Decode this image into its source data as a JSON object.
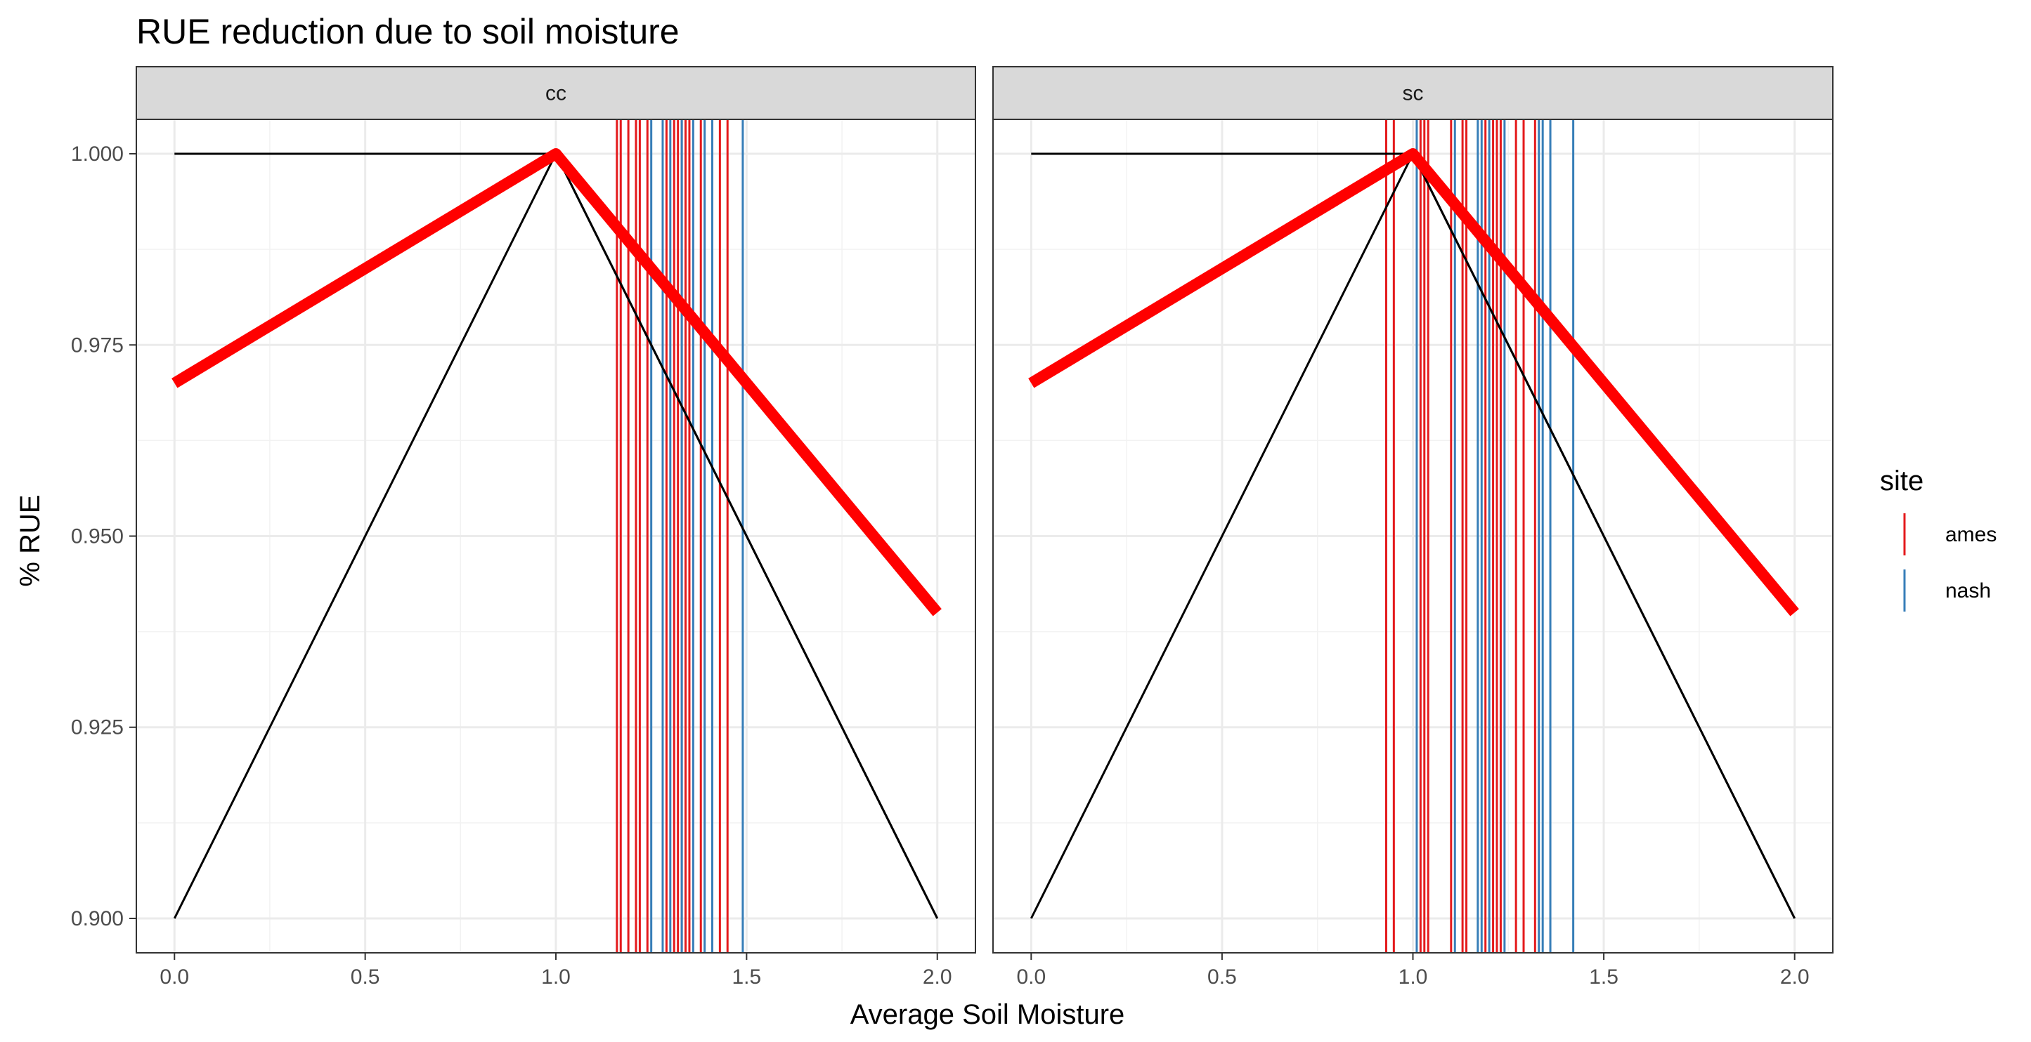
{
  "chart_data": {
    "type": "line",
    "title": "RUE reduction due to soil moisture",
    "xlabel": "Average Soil Moisture",
    "ylabel": "% RUE",
    "xlim": [
      -0.1,
      2.1
    ],
    "ylim": [
      0.8955,
      1.0045
    ],
    "x_ticks": [
      0.0,
      0.5,
      1.0,
      1.5,
      2.0
    ],
    "x_tick_labels": [
      "0.0",
      "0.5",
      "1.0",
      "1.5",
      "2.0"
    ],
    "y_ticks": [
      0.9,
      0.925,
      0.95,
      0.975,
      1.0
    ],
    "y_tick_labels": [
      "0.900",
      "0.925",
      "0.950",
      "0.975",
      "1.000"
    ],
    "grid": true,
    "legend": {
      "title": "site",
      "position": "right",
      "entries": [
        {
          "label": "ames",
          "color": "#e41a1c"
        },
        {
          "label": "nash",
          "color": "#377eb8"
        }
      ]
    },
    "panels": [
      {
        "name": "cc",
        "lines": [
          {
            "x": [
              0,
              1,
              2
            ],
            "y": [
              1.0,
              1.0,
              0.9
            ],
            "color": "#000000",
            "width": "thin"
          },
          {
            "x": [
              0,
              1,
              2
            ],
            "y": [
              0.9,
              1.0,
              0.9
            ],
            "color": "#000000",
            "width": "thin"
          },
          {
            "x": [
              0,
              1,
              2
            ],
            "y": [
              0.97,
              1.0,
              0.94
            ],
            "color": "#ff0000",
            "width": "thick"
          }
        ],
        "vlines": {
          "ames": [
            1.16,
            1.17,
            1.19,
            1.21,
            1.22,
            1.24,
            1.29,
            1.31,
            1.32,
            1.33,
            1.34,
            1.35,
            1.38,
            1.43,
            1.45
          ],
          "nash": [
            1.25,
            1.28,
            1.3,
            1.33,
            1.36,
            1.39,
            1.41,
            1.49
          ]
        }
      },
      {
        "name": "sc",
        "lines": [
          {
            "x": [
              0,
              1,
              2
            ],
            "y": [
              1.0,
              1.0,
              0.9
            ],
            "color": "#000000",
            "width": "thin"
          },
          {
            "x": [
              0,
              1,
              2
            ],
            "y": [
              0.9,
              1.0,
              0.9
            ],
            "color": "#000000",
            "width": "thin"
          },
          {
            "x": [
              0,
              1,
              2
            ],
            "y": [
              0.97,
              1.0,
              0.94
            ],
            "color": "#ff0000",
            "width": "thick"
          }
        ],
        "vlines": {
          "ames": [
            0.93,
            0.95,
            1.02,
            1.03,
            1.04,
            1.1,
            1.13,
            1.14,
            1.19,
            1.21,
            1.22,
            1.23,
            1.27,
            1.29,
            1.32
          ],
          "nash": [
            1.01,
            1.11,
            1.17,
            1.18,
            1.2,
            1.24,
            1.33,
            1.34,
            1.36,
            1.42
          ]
        }
      }
    ]
  }
}
